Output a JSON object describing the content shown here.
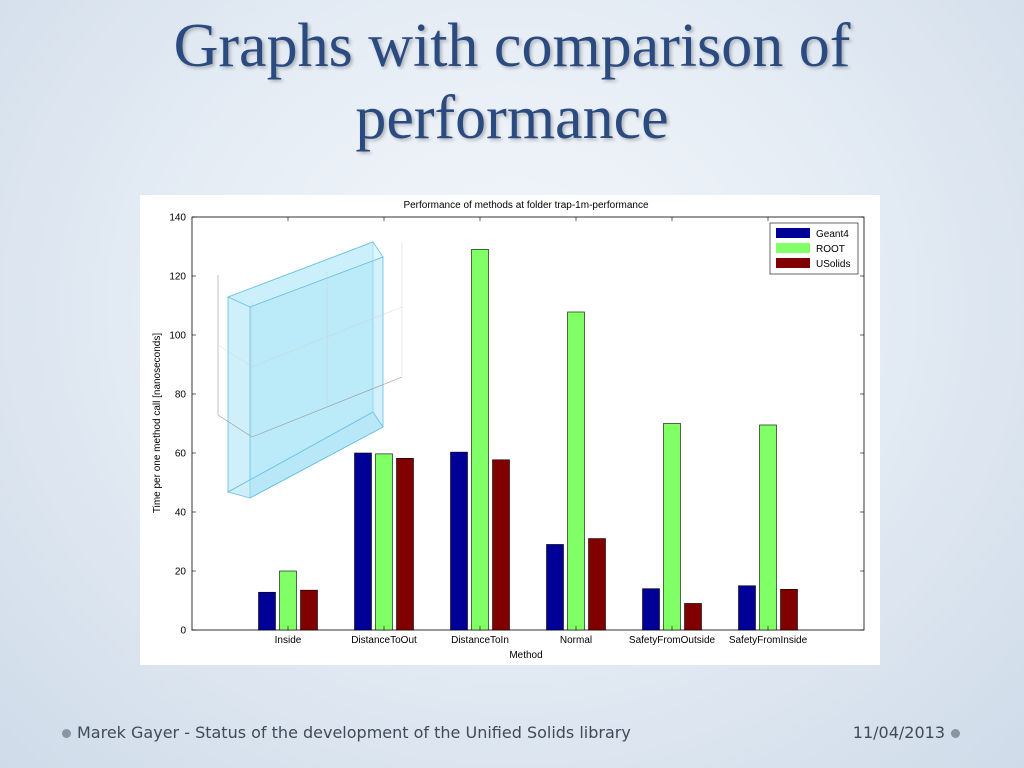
{
  "slide": {
    "title_line1": "Graphs with comparison of",
    "title_line2": "performance",
    "footer_text": "Marek Gayer - Status of the development of the Unified Solids library",
    "footer_date": "11/04/2013"
  },
  "colors": {
    "title": "#2b4a80",
    "Geant4": "#000099",
    "ROOT": "#80ff66",
    "USolids": "#800000",
    "inset_box": "#a8e4f8"
  },
  "chart_data": {
    "type": "bar",
    "title": "Performance of methods at folder trap-1m-performance",
    "xlabel": "Method",
    "ylabel": "Time per one method call [nanoseconds]",
    "ylim": [
      0,
      140
    ],
    "yticks": [
      0,
      20,
      40,
      60,
      80,
      100,
      120,
      140
    ],
    "grid": false,
    "legend_position": "top-right",
    "categories": [
      "Inside",
      "DistanceToOut",
      "DistanceToIn",
      "Normal",
      "SafetyFromOutside",
      "SafetyFromInside"
    ],
    "series": [
      {
        "name": "Geant4",
        "values": [
          12.8,
          60,
          60.3,
          29,
          14,
          15
        ]
      },
      {
        "name": "ROOT",
        "values": [
          20,
          59.7,
          129,
          107.8,
          70,
          69.5
        ]
      },
      {
        "name": "USolids",
        "values": [
          13.5,
          58.2,
          57.7,
          31,
          9,
          13.8
        ]
      }
    ]
  }
}
